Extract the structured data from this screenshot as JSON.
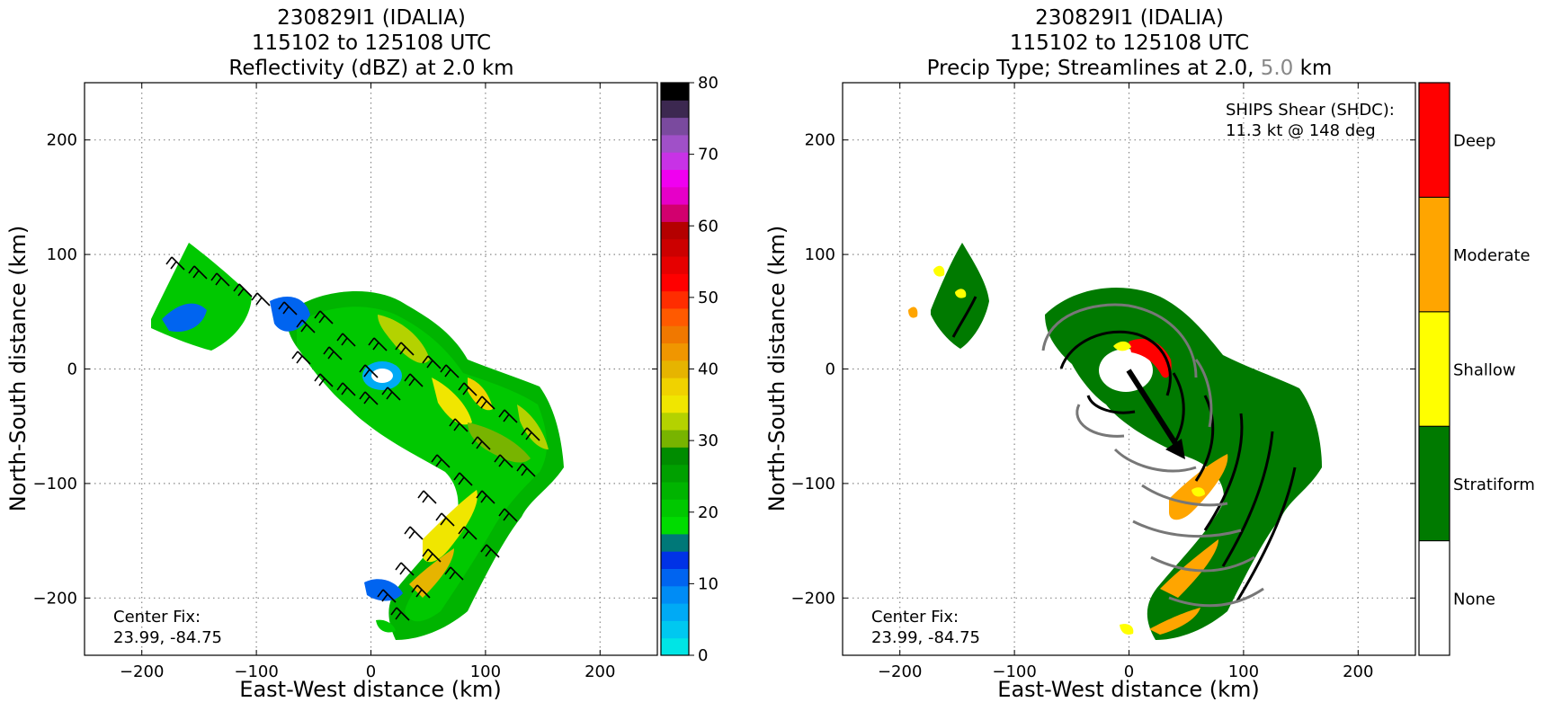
{
  "chart_data": [
    {
      "type": "heatmap",
      "title": [
        "230829I1 (IDALIA)",
        "115102 to 125108 UTC",
        "Reflectivity (dBZ) at 2.0 km"
      ],
      "xlabel": "East-West distance (km)",
      "ylabel": "North-South distance (km)",
      "xlim": [
        -250,
        250
      ],
      "ylim": [
        -250,
        250
      ],
      "xticks": [
        -200,
        -100,
        0,
        100,
        200
      ],
      "yticks": [
        -200,
        -100,
        0,
        100,
        200
      ],
      "xtick_labels": [
        "−200",
        "−100",
        "0",
        "100",
        "200"
      ],
      "ytick_labels": [
        "−200",
        "−100",
        "0",
        "100",
        "200"
      ],
      "grid": true,
      "overlay": "wind barbs at 2.0 km",
      "annotation": [
        "Center Fix:",
        "23.99, -84.75"
      ],
      "colorbar": {
        "range": [
          0,
          80
        ],
        "ticks": [
          0,
          10,
          20,
          30,
          40,
          50,
          60,
          70,
          80
        ],
        "colors": [
          "#00e5e5",
          "#00c8f0",
          "#00aaf5",
          "#008cf5",
          "#0064f0",
          "#0032e6",
          "#007878",
          "#00dc00",
          "#00c800",
          "#00b400",
          "#00a000",
          "#008c00",
          "#78b400",
          "#b4d200",
          "#f0e600",
          "#f0d200",
          "#e6b400",
          "#f09600",
          "#f07800",
          "#ff5a00",
          "#ff2d00",
          "#ff0000",
          "#e60000",
          "#cc0000",
          "#b40000",
          "#d2006e",
          "#e600c8",
          "#f000f0",
          "#c832e6",
          "#a050c8",
          "#7a4a9e",
          "#3c2850",
          "#000000"
        ]
      }
    },
    {
      "type": "heatmap",
      "title": [
        "230829I1 (IDALIA)",
        "115102 to 125108 UTC",
        "Precip Type; Streamlines at 2.0, ",
        "5.0",
        " km"
      ],
      "xlabel": "East-West distance (km)",
      "ylabel": "North-South distance (km)",
      "xlim": [
        -250,
        250
      ],
      "ylim": [
        -250,
        250
      ],
      "xticks": [
        -200,
        -100,
        0,
        100,
        200
      ],
      "yticks": [
        -200,
        -100,
        0,
        100,
        200
      ],
      "xtick_labels": [
        "−200",
        "−100",
        "0",
        "100",
        "200"
      ],
      "ytick_labels": [
        "−200",
        "−100",
        "0",
        "100",
        "200"
      ],
      "grid": true,
      "overlay": "streamlines at 2.0 km (black) and 5.0 km (gray); shear vector arrow",
      "shear_text": [
        "SHIPS Shear (SHDC):",
        "11.3 kt @ 148 deg"
      ],
      "shear": {
        "speed_kt": 11.3,
        "direction_deg": 148
      },
      "annotation": [
        "Center Fix:",
        "23.99, -84.75"
      ],
      "categories": [
        "None",
        "Stratiform",
        "Shallow",
        "Moderate",
        "Deep"
      ],
      "category_colors": [
        "#ffffff",
        "#007a00",
        "#ffff00",
        "#ffa500",
        "#ff0000"
      ]
    }
  ]
}
